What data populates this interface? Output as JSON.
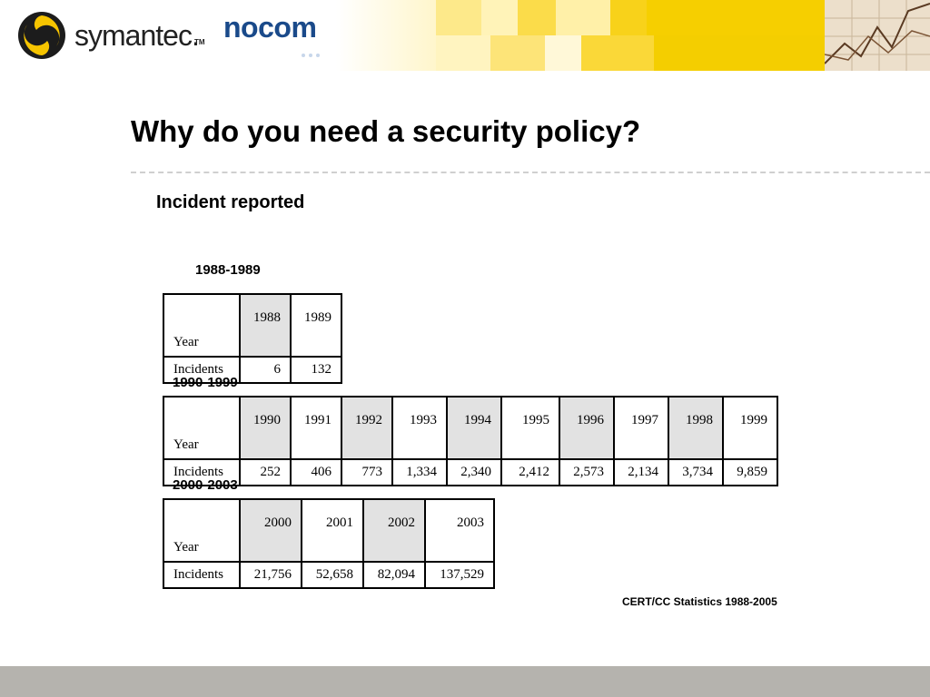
{
  "header": {
    "brand": "symantec.",
    "brand_tm": "TM",
    "partner": "nocom"
  },
  "colors": {
    "accent_yellow": "#f5d000",
    "partner_blue": "#1a4a8a",
    "cell_shade": "#e2e2e2",
    "footer_bar": "#b5b3ae"
  },
  "slide": {
    "title": "Why do you need a security policy?",
    "subtitle": "Incident reported",
    "source": "CERT/CC Statistics 1988-2005"
  },
  "tables": [
    {
      "range_label": "1988-1989",
      "row_labels": [
        "Year",
        "Incidents"
      ],
      "years": [
        "1988",
        "1989"
      ],
      "incidents": [
        "6",
        "132"
      ]
    },
    {
      "range_label": "1990-1999",
      "row_labels": [
        "Year",
        "Incidents"
      ],
      "years": [
        "1990",
        "1991",
        "1992",
        "1993",
        "1994",
        "1995",
        "1996",
        "1997",
        "1998",
        "1999"
      ],
      "incidents": [
        "252",
        "406",
        "773",
        "1,334",
        "2,340",
        "2,412",
        "2,573",
        "2,134",
        "3,734",
        "9,859"
      ]
    },
    {
      "range_label": "2000-2003",
      "row_labels": [
        "Year",
        "Incidents"
      ],
      "years": [
        "2000",
        "2001",
        "2002",
        "2003"
      ],
      "incidents": [
        "21,756",
        "52,658",
        "82,094",
        "137,529"
      ]
    }
  ]
}
